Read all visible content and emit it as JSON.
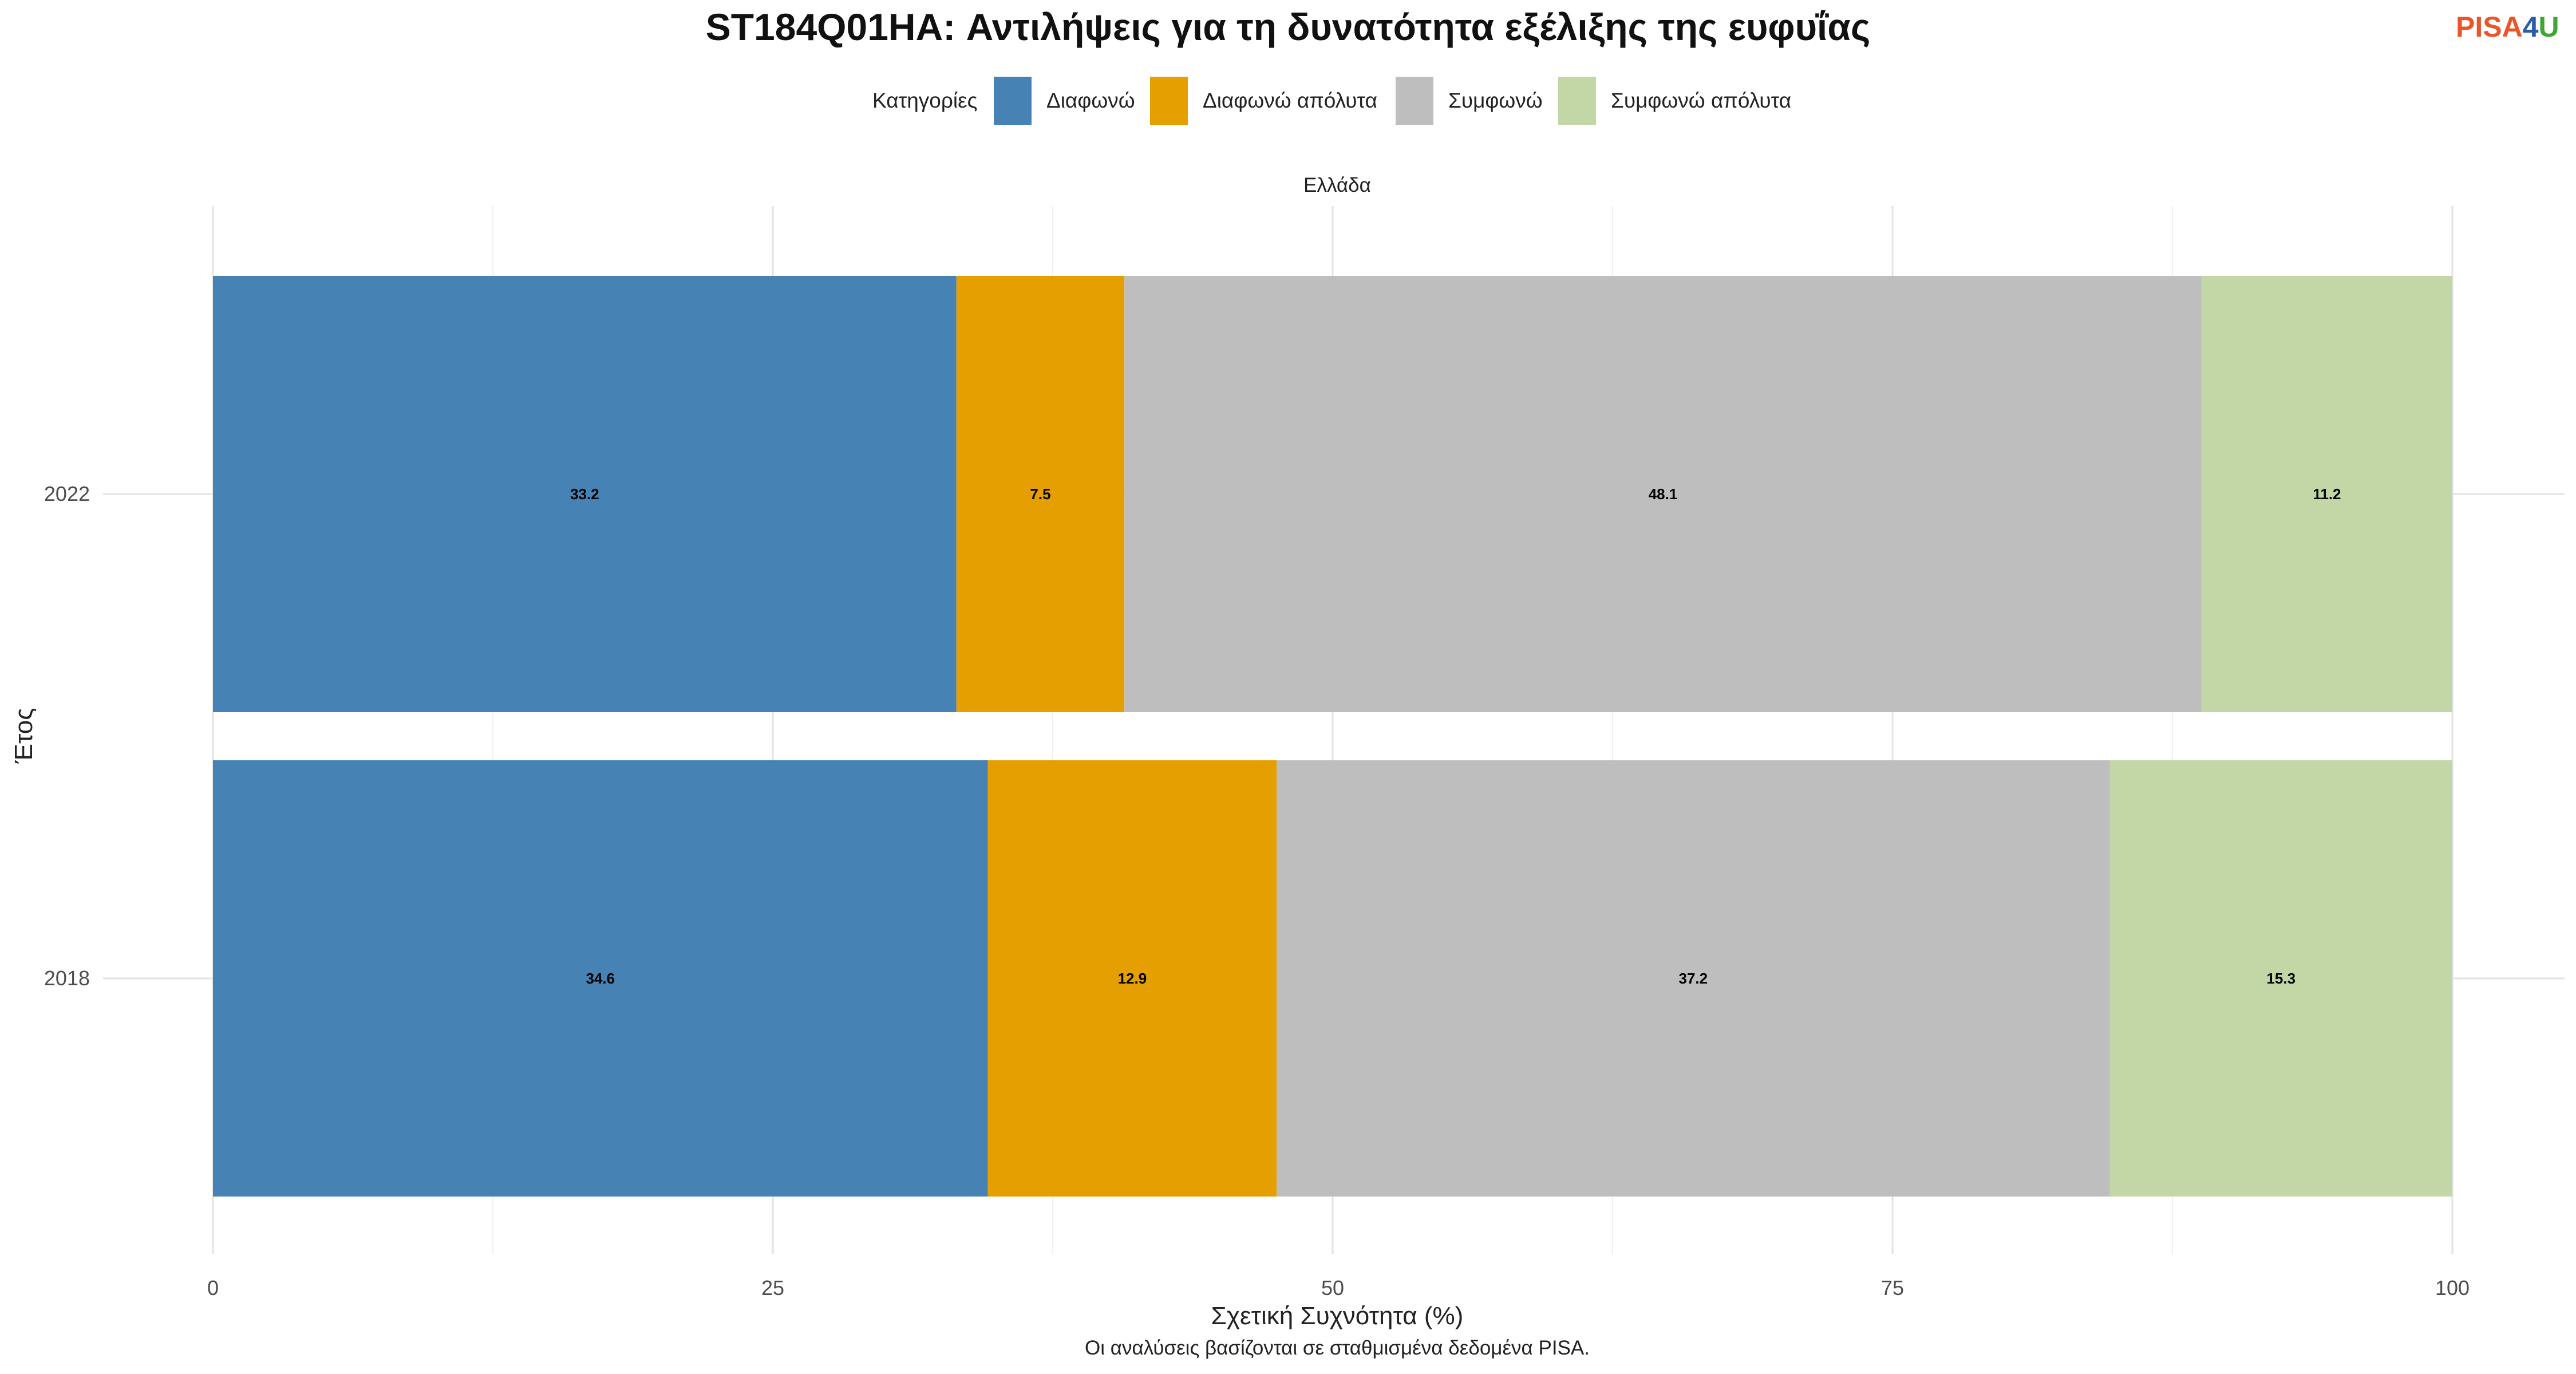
{
  "chart_data": {
    "type": "bar",
    "orientation": "horizontal",
    "stacked": true,
    "title": "ST184Q01HA: Αντιλήψεις για τη δυνατότητα εξέλιξης της ευφυΐας",
    "facet": "Ελλάδα",
    "xlabel": "Σχετική Συχνότητα (%)",
    "ylabel": "Έτος",
    "caption": "Οι αναλύσεις βασίζονται σε σταθμισμένα δεδομένα PISA.",
    "xlim": [
      0,
      100
    ],
    "xticks": [
      0,
      25,
      50,
      75,
      100
    ],
    "categories": [
      "2022",
      "2018"
    ],
    "legend": {
      "title": "Κατηγορίες",
      "position": "top"
    },
    "grid": true,
    "series": [
      {
        "name": "Διαφωνώ",
        "color": "#4682B4",
        "values": [
          33.2,
          34.6
        ]
      },
      {
        "name": "Διαφωνώ απόλυτα",
        "color": "#E69F00",
        "values": [
          7.5,
          12.9
        ]
      },
      {
        "name": "Συμφωνώ",
        "color": "#BEBEBE",
        "values": [
          48.1,
          37.2
        ]
      },
      {
        "name": "Συμφωνώ απόλυτα",
        "color": "#C2D7A5",
        "values": [
          11.2,
          15.3
        ]
      }
    ]
  },
  "logo": {
    "text_main": "PISA",
    "text_digit": "4",
    "text_end": "U",
    "color_main": "#E8562A",
    "color_digit": "#2A5DA8",
    "color_end": "#3FA535"
  }
}
